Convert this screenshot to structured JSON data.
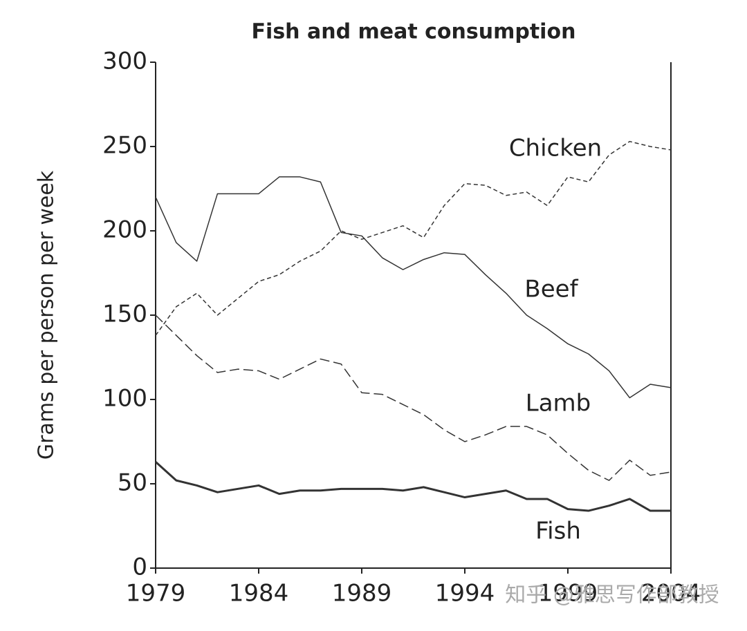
{
  "chart_data": {
    "type": "line",
    "title": "Fish and meat consumption",
    "y_label": "Grams per person per week",
    "x": [
      1979,
      1980,
      1981,
      1982,
      1983,
      1984,
      1985,
      1986,
      1987,
      1988,
      1989,
      1990,
      1991,
      1992,
      1993,
      1994,
      1995,
      1996,
      1997,
      1998,
      1999,
      2000,
      2001,
      2002,
      2003,
      2004
    ],
    "xlim": [
      1979,
      2004
    ],
    "xticks": [
      1979,
      1984,
      1989,
      1994,
      1999,
      2004
    ],
    "ylim": [
      0,
      300
    ],
    "yticks": [
      0,
      50,
      100,
      150,
      200,
      250,
      300
    ],
    "series": [
      {
        "name": "Chicken",
        "color": "#333333",
        "dash": "6,4",
        "width": 1.5,
        "values": [
          138,
          155,
          163,
          150,
          160,
          170,
          174,
          182,
          188,
          200,
          195,
          199,
          203,
          196,
          215,
          228,
          227,
          221,
          223,
          215,
          232,
          229,
          245,
          253,
          250,
          248
        ]
      },
      {
        "name": "Beef",
        "color": "#333333",
        "dash": "none",
        "width": 1.5,
        "values": [
          220,
          193,
          182,
          222,
          222,
          222,
          232,
          232,
          229,
          199,
          197,
          184,
          177,
          183,
          187,
          186,
          174,
          163,
          150,
          142,
          133,
          127,
          117,
          101,
          109,
          107
        ]
      },
      {
        "name": "Lamb",
        "color": "#333333",
        "dash": "14,6",
        "width": 1.5,
        "values": [
          150,
          138,
          126,
          116,
          118,
          117,
          112,
          118,
          124,
          121,
          104,
          103,
          97,
          91,
          82,
          75,
          79,
          84,
          84,
          79,
          68,
          58,
          52,
          64,
          55,
          57
        ]
      },
      {
        "name": "Fish",
        "color": "#333333",
        "dash": "none",
        "width": 3,
        "values": [
          63,
          52,
          49,
          45,
          47,
          49,
          44,
          46,
          46,
          47,
          47,
          47,
          46,
          48,
          45,
          42,
          44,
          46,
          41,
          41,
          35,
          34,
          37,
          41,
          34,
          34
        ]
      }
    ]
  },
  "watermark": "知乎 @雅思写作部教授"
}
